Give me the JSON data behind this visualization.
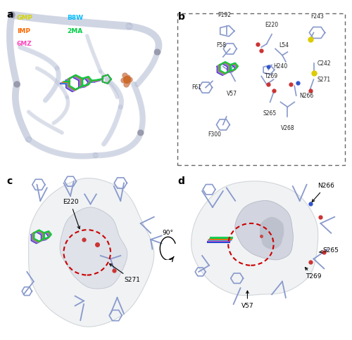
{
  "fig_width": 5.0,
  "fig_height": 4.84,
  "bg_color": "#ffffff",
  "panel_bg_a": "#cdd5e5",
  "panel_bg_b": "#ffffff",
  "panel_bg_cd": "#ffffff",
  "panel_labels": [
    "a",
    "b",
    "c",
    "d"
  ],
  "legend_a": {
    "items": [
      {
        "label": "GMP",
        "color": "#d4d400"
      },
      {
        "label": "IMP",
        "color": "#ff6600"
      },
      {
        "label": "6MZ",
        "color": "#ff44bb"
      },
      {
        "label": "B8W",
        "color": "#00bbff"
      },
      {
        "label": "2MA",
        "color": "#00cc44"
      }
    ]
  },
  "protein_color": "#8899cc",
  "protein_color_dark": "#5566aa",
  "surface_outer": "#e8eaee",
  "surface_inner": "#d0d4de",
  "dashed_circle_color": "#cc0000",
  "mol_colors_b": [
    "#1133cc",
    "#ff44bb",
    "#00bbff",
    "#ff6600",
    "#00cc44"
  ],
  "mol_colors_cd": [
    "#1133cc",
    "#ff44bb",
    "#00bbff",
    "#ff6600",
    "#00cc44"
  ],
  "red_oxygen": "#cc3333",
  "blue_nitrogen": "#3355cc",
  "yellow_sulfur": "#ddcc00",
  "border_color_b": "#666666"
}
